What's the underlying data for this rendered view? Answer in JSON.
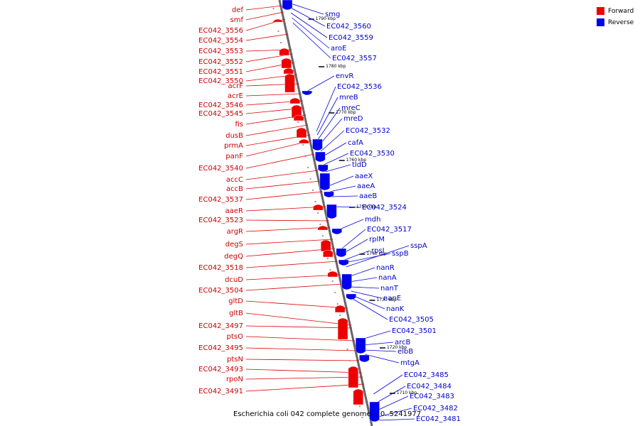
{
  "legend": {
    "forward_label": "Forward",
    "reverse_label": "Reverse",
    "forward_color": "#ee0000",
    "reverse_color": "#0000ee"
  },
  "caption": "Escherichia coli 042 complete genome. - 0..5241977",
  "scale_labels": [
    "1790 kbp",
    "1780 kbp",
    "1770 kbp",
    "1760 kbp",
    "1750 kbp",
    "1740 kbp",
    "1730 kbp",
    "1720 kbp",
    "1710 kbp"
  ],
  "forward_genes": [
    "def",
    "smf",
    "EC042_3556",
    "EC042_3554",
    "EC042_3553",
    "EC042_3552",
    "EC042_3551",
    "EC042_3550",
    "acrF",
    "acrE",
    "EC042_3546",
    "EC042_3545",
    "fis",
    "dusB",
    "prmA",
    "panF",
    "EC042_3540",
    "accC",
    "accB",
    "EC042_3537",
    "aaeR",
    "EC042_3523",
    "argR",
    "degS",
    "degQ",
    "EC042_3518",
    "dcuD",
    "EC042_3504",
    "gltD",
    "gltB",
    "EC042_3497",
    "ptsO",
    "EC042_3495",
    "ptsN",
    "EC042_3493",
    "rpoN",
    "EC042_3491"
  ],
  "reverse_genes": [
    "smg",
    "EC042_3560",
    "EC042_3559",
    "aroE",
    "EC042_3557",
    "envR",
    "EC042_3536",
    "mreB",
    "mreC",
    "mreD",
    "EC042_3532",
    "cafA",
    "EC042_3530",
    "tldD",
    "aaeX",
    "aaeA",
    "aaeB",
    "EC042_3524",
    "mdh",
    "EC042_3517",
    "rplM",
    "rpsI",
    "sspB",
    "sspA",
    "nanR",
    "nanA",
    "nanT",
    "nanE",
    "nanK",
    "EC042_3505",
    "EC042_3501",
    "arcB",
    "elbB",
    "mtgA",
    "EC042_3485",
    "EC042_3484",
    "EC042_3483",
    "EC042_3482",
    "EC042_3481"
  ]
}
